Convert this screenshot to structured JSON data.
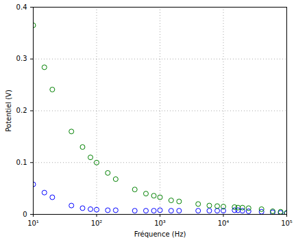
{
  "chart_data": {
    "type": "scatter",
    "x_label": "Fréquence (Hz)",
    "y_label": "Potentiel (V)",
    "log": "x",
    "grid": true,
    "x": [
      10,
      15,
      20,
      40,
      60,
      80,
      100,
      150,
      200,
      400,
      600,
      800,
      1000,
      1500,
      2000,
      4000,
      6000,
      8000,
      10000,
      15000,
      17000,
      20000,
      25000,
      40000,
      60000,
      80000,
      100000
    ],
    "series": [
      {
        "color": "#0000ff",
        "marker": "circle",
        "values": [
          0.058,
          0.042,
          0.033,
          0.017,
          0.012,
          0.01,
          0.009,
          0.008,
          0.008,
          0.007,
          0.007,
          0.007,
          0.008,
          0.007,
          0.007,
          0.007,
          0.007,
          0.007,
          0.007,
          0.008,
          0.008,
          0.007,
          0.006,
          0.005,
          0.004,
          0.003,
          0.002
        ]
      },
      {
        "color": "#008000",
        "marker": "circle",
        "values": [
          0.365,
          0.284,
          0.241,
          0.16,
          0.13,
          0.11,
          0.1,
          0.08,
          0.068,
          0.048,
          0.04,
          0.036,
          0.033,
          0.027,
          0.025,
          0.02,
          0.017,
          0.016,
          0.015,
          0.014,
          0.013,
          0.013,
          0.012,
          0.01,
          0.006,
          0.005,
          0.003
        ]
      }
    ],
    "xlim": [
      10,
      100000
    ],
    "xticks": [
      {
        "value": 10,
        "label": "10¹"
      },
      {
        "value": 100,
        "label": "10²"
      },
      {
        "value": 1000,
        "label": "10³"
      },
      {
        "value": 10000,
        "label": "10⁴"
      },
      {
        "value": 100000,
        "label": "10⁵"
      }
    ],
    "ylim": [
      0,
      0.4
    ],
    "yticks": [
      0,
      0.1,
      0.2,
      0.3,
      0.4
    ]
  }
}
